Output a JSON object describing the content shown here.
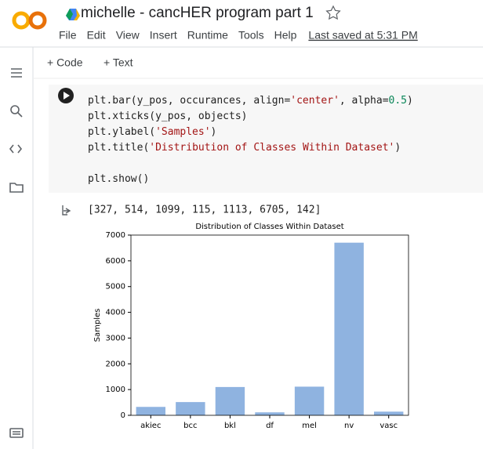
{
  "header": {
    "title": "michelle - cancHER program part 1",
    "menu": [
      "File",
      "Edit",
      "View",
      "Insert",
      "Runtime",
      "Tools",
      "Help"
    ],
    "last_saved": "Last saved at 5:31 PM"
  },
  "toolbar": [
    "+ Code",
    "+ Text"
  ],
  "cell": {
    "code": [
      [
        "plt.bar(y_pos, occurances, align=",
        "'center'",
        ", alpha=",
        "0.5",
        ")"
      ],
      [
        "plt.xticks(y_pos, objects)"
      ],
      [
        "plt.ylabel(",
        "'Samples'",
        ")"
      ],
      [
        "plt.title(",
        "'Distribution of Classes Within Dataset'",
        ")"
      ],
      [],
      [
        "plt.show()"
      ]
    ],
    "output": "[327, 514, 1099, 115, 1113, 6705, 142]"
  },
  "chart_data": {
    "type": "bar",
    "title": "Distribution of Classes Within Dataset",
    "y_label": "Samples",
    "categories": [
      "akiec",
      "bcc",
      "bkl",
      "df",
      "mel",
      "nv",
      "vasc"
    ],
    "values": [
      327,
      514,
      1099,
      115,
      1113,
      6705,
      142
    ],
    "color": "#8fb3e0",
    "ylim": [
      0,
      7000
    ],
    "yticks": [
      0,
      1000,
      2000,
      3000,
      4000,
      5000,
      6000,
      7000
    ],
    "grid": false
  }
}
